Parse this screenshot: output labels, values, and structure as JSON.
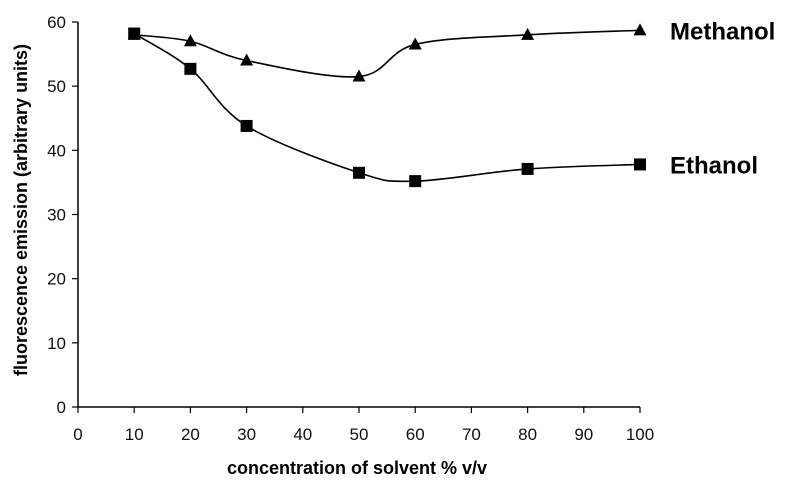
{
  "chart_data": {
    "type": "line",
    "xlabel": "concentration of solvent % v/v",
    "ylabel": "fluorescence emission (arbitrary units)",
    "xlim": [
      0,
      100
    ],
    "ylim": [
      0,
      60
    ],
    "x_ticks": [
      "0",
      "10",
      "20",
      "30",
      "40",
      "50",
      "60",
      "70",
      "80",
      "90",
      "100"
    ],
    "y_ticks": [
      "0",
      "10",
      "20",
      "30",
      "40",
      "50",
      "60"
    ],
    "grid": false,
    "series": [
      {
        "name": "Methanol",
        "marker": "triangle",
        "color": "#000000",
        "x": [
          10,
          20,
          30,
          50,
          60,
          80,
          100
        ],
        "y": [
          58,
          57,
          54,
          51.5,
          56.5,
          58,
          58.7
        ]
      },
      {
        "name": "Ethanol",
        "marker": "square",
        "color": "#000000",
        "x": [
          10,
          20,
          30,
          50,
          60,
          80,
          100
        ],
        "y": [
          58.2,
          52.7,
          43.8,
          36.5,
          35.2,
          37.1,
          37.8
        ]
      }
    ]
  }
}
